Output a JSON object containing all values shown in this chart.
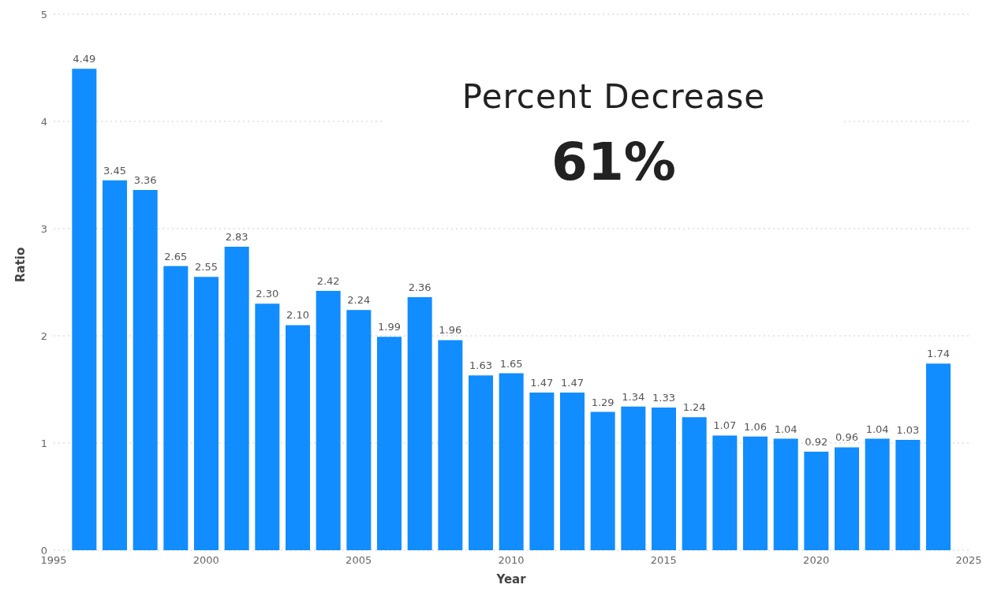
{
  "chart_data": {
    "type": "bar",
    "xlabel": "Year",
    "ylabel": "Ratio",
    "x": [
      1996,
      1997,
      1998,
      1999,
      2000,
      2001,
      2002,
      2003,
      2004,
      2005,
      2006,
      2007,
      2008,
      2009,
      2010,
      2011,
      2012,
      2013,
      2014,
      2015,
      2016,
      2017,
      2018,
      2019,
      2020,
      2021,
      2022,
      2023,
      2024
    ],
    "values": [
      4.49,
      3.45,
      3.36,
      2.65,
      2.55,
      2.83,
      2.3,
      2.1,
      2.42,
      2.24,
      1.99,
      2.36,
      1.96,
      1.63,
      1.65,
      1.47,
      1.47,
      1.29,
      1.34,
      1.33,
      1.24,
      1.07,
      1.06,
      1.04,
      0.92,
      0.96,
      1.04,
      1.03,
      1.74
    ],
    "value_labels": [
      "4.49",
      "3.45",
      "3.36",
      "2.65",
      "2.55",
      "2.83",
      "2.30",
      "2.10",
      "2.42",
      "2.24",
      "1.99",
      "2.36",
      "1.96",
      "1.63",
      "1.65",
      "1.47",
      "1.47",
      "1.29",
      "1.34",
      "1.33",
      "1.24",
      "1.07",
      "1.06",
      "1.04",
      "0.92",
      "0.96",
      "1.04",
      "1.03",
      "1.74"
    ],
    "color": "#118dff",
    "xlim": [
      1995,
      2025
    ],
    "xticks": [
      1995,
      2000,
      2005,
      2010,
      2015,
      2020,
      2025
    ],
    "ylim": [
      0,
      5
    ],
    "yticks": [
      0,
      1,
      2,
      3,
      4,
      5
    ],
    "grid": "y",
    "annotations": [
      "Percent Decrease",
      "61%"
    ]
  }
}
